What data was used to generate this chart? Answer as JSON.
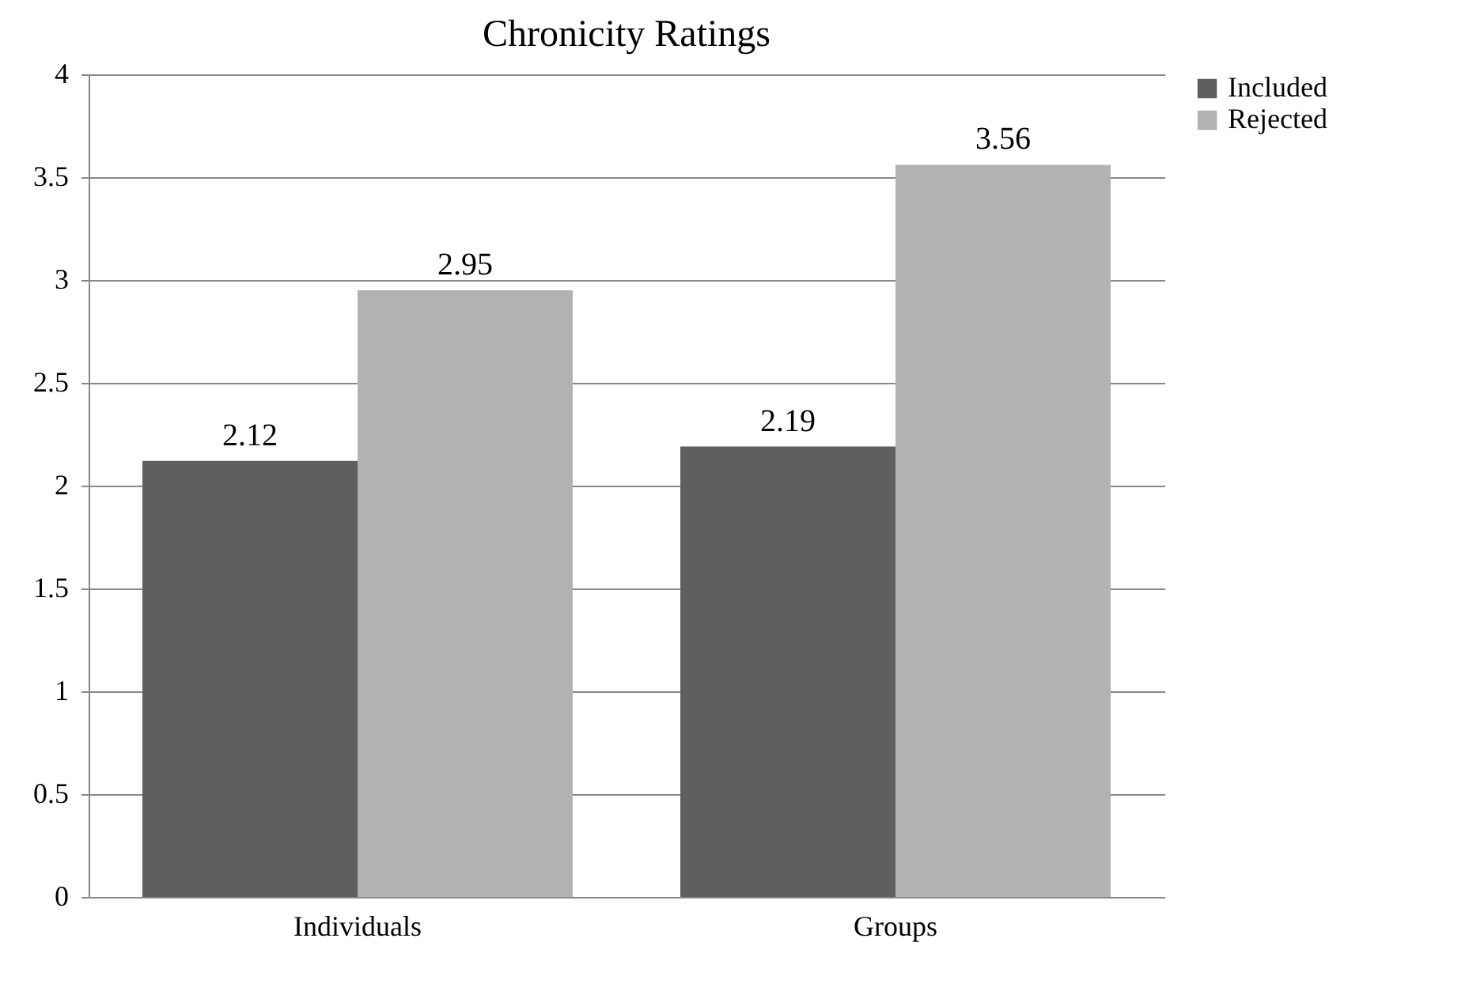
{
  "chart_data": {
    "type": "bar",
    "title": "Chronicity Ratings",
    "categories": [
      "Individuals",
      "Groups"
    ],
    "series": [
      {
        "name": "Included",
        "color": "#5f5f5f",
        "values": [
          2.12,
          2.19
        ]
      },
      {
        "name": "Rejected",
        "color": "#b2b2b2",
        "values": [
          2.95,
          3.56
        ]
      }
    ],
    "ylim": [
      0,
      4
    ],
    "yticks": [
      0,
      0.5,
      1,
      1.5,
      2,
      2.5,
      3,
      3.5,
      4
    ],
    "grid": "y",
    "legend": "right",
    "data_labels": true
  }
}
